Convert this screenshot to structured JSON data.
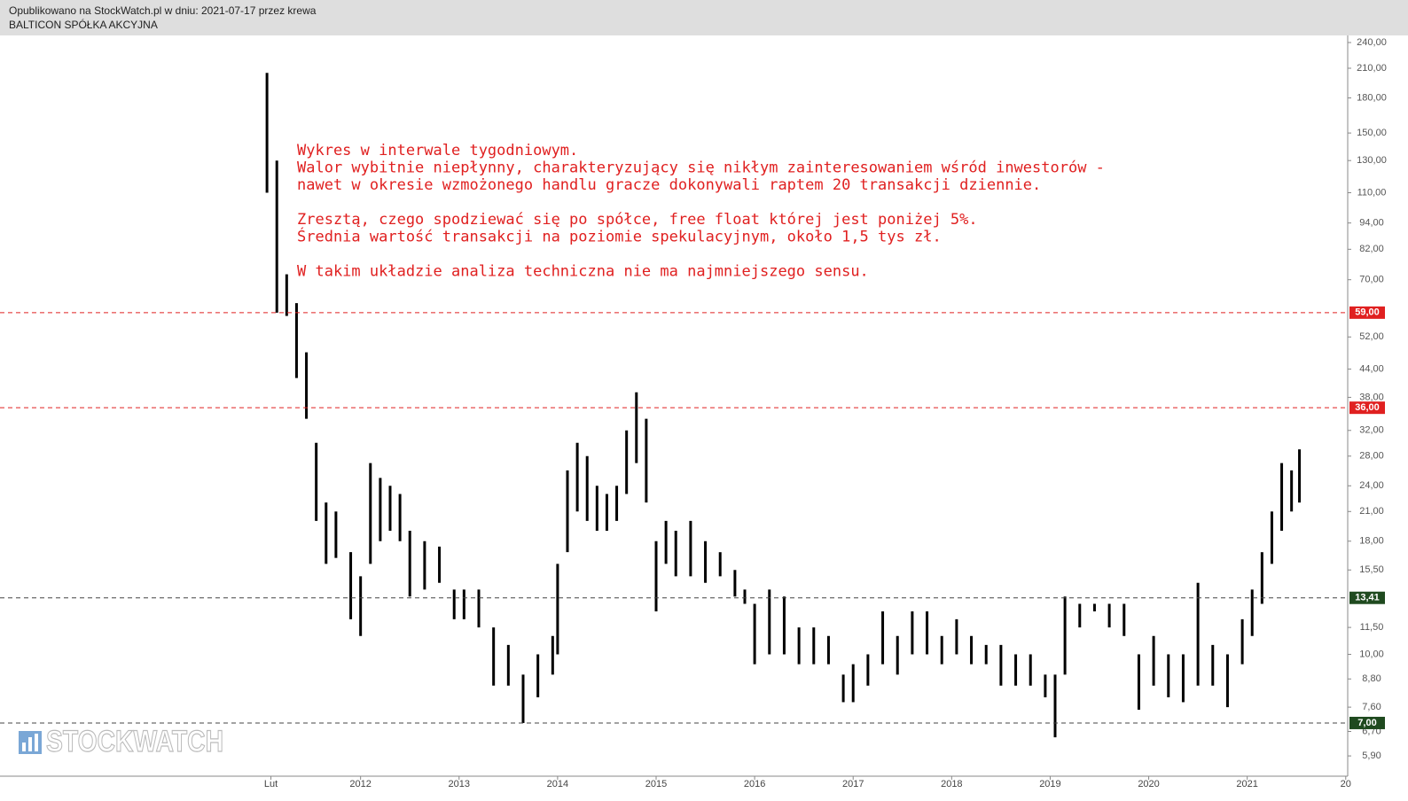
{
  "header": {
    "published": "Opublikowano na StockWatch.pl w dniu: 2021-07-17 przez krewa",
    "company": "BALTICON SPÓŁKA AKCYJNA"
  },
  "watermark": "STOCKWATCH",
  "chart_data": {
    "type": "ohlc",
    "log_scale": true,
    "color": "#000000",
    "annotation": [
      [
        "Wykres w interwale tygodniowym.",
        "Walor wybitnie niepłynny, charakteryzujący się nikłym zainteresowaniem wśród inwestorów -",
        "nawet w okresie wzmożonego handlu gracze dokonywali raptem 20 transakcji dziennie."
      ],
      [
        "Zresztą, czego spodziewać się po spółce, free float której jest poniżej 5%.",
        "Średnia wartość transakcji na poziomie spekulacyjnym, około 1,5 tys zł."
      ],
      [
        "W takim układzie analiza techniczna nie ma najmniejszego sensu."
      ]
    ],
    "annotation_color": "#e02020",
    "x": [
      2011.05,
      2011.15,
      2011.25,
      2011.35,
      2011.45,
      2011.55,
      2011.65,
      2011.75,
      2011.9,
      2012.0,
      2012.1,
      2012.2,
      2012.3,
      2012.4,
      2012.5,
      2012.65,
      2012.8,
      2012.95,
      2013.05,
      2013.2,
      2013.35,
      2013.5,
      2013.65,
      2013.8,
      2013.95,
      2014.0,
      2014.1,
      2014.2,
      2014.3,
      2014.4,
      2014.5,
      2014.6,
      2014.7,
      2014.8,
      2014.9,
      2015.0,
      2015.1,
      2015.2,
      2015.35,
      2015.5,
      2015.65,
      2015.8,
      2015.9,
      2016.0,
      2016.15,
      2016.3,
      2016.45,
      2016.6,
      2016.75,
      2016.9,
      2017.0,
      2017.15,
      2017.3,
      2017.45,
      2017.6,
      2017.75,
      2017.9,
      2018.05,
      2018.2,
      2018.35,
      2018.5,
      2018.65,
      2018.8,
      2018.95,
      2019.05,
      2019.15,
      2019.3,
      2019.45,
      2019.6,
      2019.75,
      2019.9,
      2020.05,
      2020.2,
      2020.35,
      2020.5,
      2020.65,
      2020.8,
      2020.95,
      2021.05,
      2021.15,
      2021.25,
      2021.35,
      2021.45,
      2021.53
    ],
    "high": [
      205,
      130,
      72,
      62,
      48,
      30,
      22,
      21,
      17,
      15,
      27,
      25,
      24,
      23,
      19,
      18,
      17.5,
      14,
      14,
      14,
      11.5,
      10.5,
      9,
      10,
      11,
      16,
      26,
      30,
      28,
      24,
      23,
      24,
      32,
      39,
      34,
      18,
      20,
      19,
      20,
      18,
      17,
      15.5,
      14,
      13,
      14,
      13.5,
      11.5,
      11.5,
      11,
      9,
      9.5,
      10,
      12.5,
      11,
      12.5,
      12.5,
      11,
      12,
      11,
      10.5,
      10.5,
      10,
      10,
      9,
      9,
      13.5,
      13,
      13,
      13,
      13,
      10,
      11,
      10,
      10,
      14.5,
      10.5,
      10,
      12,
      14,
      17,
      21,
      27,
      26,
      29
    ],
    "low": [
      110,
      59,
      58,
      42,
      34,
      20,
      16,
      16.5,
      12,
      11,
      16,
      18,
      19,
      18,
      13.5,
      14,
      14.5,
      12,
      12,
      11.5,
      8.5,
      8.5,
      7,
      8,
      9,
      10,
      17,
      21,
      20,
      19,
      19,
      20,
      23,
      27,
      22,
      12.5,
      16,
      15,
      15,
      14.5,
      15,
      13.5,
      13,
      9.5,
      10,
      10,
      9.5,
      9.5,
      9.5,
      7.8,
      7.8,
      8.5,
      9.5,
      9,
      10,
      10,
      9.5,
      10,
      9.5,
      9.5,
      8.5,
      8.5,
      8.5,
      8,
      6.5,
      9,
      11.5,
      12.5,
      11.5,
      11,
      7.5,
      8.5,
      8,
      7.8,
      8.5,
      8.5,
      7.6,
      9.5,
      11,
      13,
      16,
      19,
      21,
      22
    ],
    "levels": [
      {
        "value": 59,
        "label": "59,00",
        "color": "#e02020",
        "box": "#e02020"
      },
      {
        "value": 36,
        "label": "36,00",
        "color": "#e02020",
        "box": "#e02020"
      },
      {
        "value": 13.41,
        "label": "13,41",
        "color": "#444444",
        "box": "#1f4a1f"
      },
      {
        "value": 7,
        "label": "7,00",
        "color": "#444444",
        "box": "#1f4a1f"
      }
    ],
    "xlim": [
      2008.34,
      2022.02
    ],
    "xticks": [
      {
        "value": 2011.09,
        "label": "Lut"
      },
      2012,
      2013,
      2014,
      2015,
      2016,
      2017,
      2018,
      2019,
      2020,
      2021,
      {
        "value": 2022,
        "label": "20"
      }
    ],
    "ylim": [
      5.31,
      249
    ],
    "yticks": [
      {
        "value": 240,
        "label": "240,00"
      },
      {
        "value": 210,
        "label": "210,00"
      },
      {
        "value": 180,
        "label": "180,00"
      },
      {
        "value": 150,
        "label": "150,00"
      },
      {
        "value": 130,
        "label": "130,00"
      },
      {
        "value": 110,
        "label": "110,00"
      },
      {
        "value": 94,
        "label": "94,00"
      },
      {
        "value": 82,
        "label": "82,00"
      },
      {
        "value": 70,
        "label": "70,00"
      },
      {
        "value": 52,
        "label": "52,00"
      },
      {
        "value": 44,
        "label": "44,00"
      },
      {
        "value": 38,
        "label": "38,00"
      },
      {
        "value": 32,
        "label": "32,00"
      },
      {
        "value": 28,
        "label": "28,00"
      },
      {
        "value": 24,
        "label": "24,00"
      },
      {
        "value": 21,
        "label": "21,00"
      },
      {
        "value": 18,
        "label": "18,00"
      },
      {
        "value": 15.5,
        "label": "15,50"
      },
      {
        "value": 11.5,
        "label": "11,50"
      },
      {
        "value": 10,
        "label": "10,00"
      },
      {
        "value": 8.8,
        "label": "8,80"
      },
      {
        "value": 7.6,
        "label": "7,60"
      },
      {
        "value": 6.7,
        "label": "6,70"
      },
      {
        "value": 5.9,
        "label": "5,90"
      }
    ]
  }
}
